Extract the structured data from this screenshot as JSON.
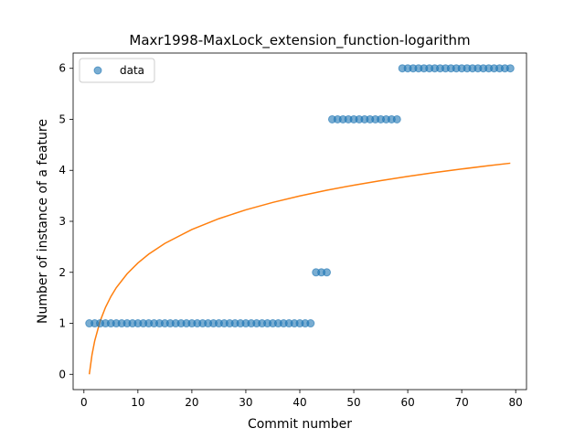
{
  "chart_data": {
    "type": "scatter",
    "title": "Maxr1998-MaxLock_extension_function-logarithm",
    "xlabel": "Commit number",
    "ylabel": "Number of instance of a feature",
    "xlim": [
      -2,
      82
    ],
    "ylim": [
      -0.3,
      6.3
    ],
    "xticks": [
      0,
      10,
      20,
      30,
      40,
      50,
      60,
      70,
      80
    ],
    "yticks": [
      0,
      1,
      2,
      3,
      4,
      5,
      6
    ],
    "legend_position": "top-left",
    "series": [
      {
        "name": "data",
        "kind": "scatter",
        "color": "#1f77b4",
        "x": [
          1,
          2,
          3,
          4,
          5,
          6,
          7,
          8,
          9,
          10,
          11,
          12,
          13,
          14,
          15,
          16,
          17,
          18,
          19,
          20,
          21,
          22,
          23,
          24,
          25,
          26,
          27,
          28,
          29,
          30,
          31,
          32,
          33,
          34,
          35,
          36,
          37,
          38,
          39,
          40,
          41,
          42,
          43,
          44,
          45,
          46,
          47,
          48,
          49,
          50,
          51,
          52,
          53,
          54,
          55,
          56,
          57,
          58,
          59,
          60,
          61,
          62,
          63,
          64,
          65,
          66,
          67,
          68,
          69,
          70,
          71,
          72,
          73,
          74,
          75,
          76,
          77,
          78,
          79
        ],
        "y": [
          1,
          1,
          1,
          1,
          1,
          1,
          1,
          1,
          1,
          1,
          1,
          1,
          1,
          1,
          1,
          1,
          1,
          1,
          1,
          1,
          1,
          1,
          1,
          1,
          1,
          1,
          1,
          1,
          1,
          1,
          1,
          1,
          1,
          1,
          1,
          1,
          1,
          1,
          1,
          1,
          1,
          1,
          2,
          2,
          2,
          5,
          5,
          5,
          5,
          5,
          5,
          5,
          5,
          5,
          5,
          5,
          5,
          5,
          6,
          6,
          6,
          6,
          6,
          6,
          6,
          6,
          6,
          6,
          6,
          6,
          6,
          6,
          6,
          6,
          6,
          6,
          6,
          6,
          6
        ]
      },
      {
        "kind": "line",
        "color": "#ff7f0e",
        "x": [
          1,
          1.5,
          2,
          3,
          4,
          5,
          6,
          8,
          10,
          12,
          15,
          20,
          25,
          30,
          35,
          40,
          45,
          50,
          55,
          60,
          65,
          70,
          75,
          79
        ],
        "y": [
          0,
          0.385,
          0.657,
          1.042,
          1.314,
          1.526,
          1.699,
          1.971,
          2.183,
          2.356,
          2.568,
          2.84,
          3.052,
          3.225,
          3.371,
          3.497,
          3.609,
          3.709,
          3.799,
          3.881,
          3.957,
          4.026,
          4.091,
          4.14
        ]
      }
    ]
  }
}
